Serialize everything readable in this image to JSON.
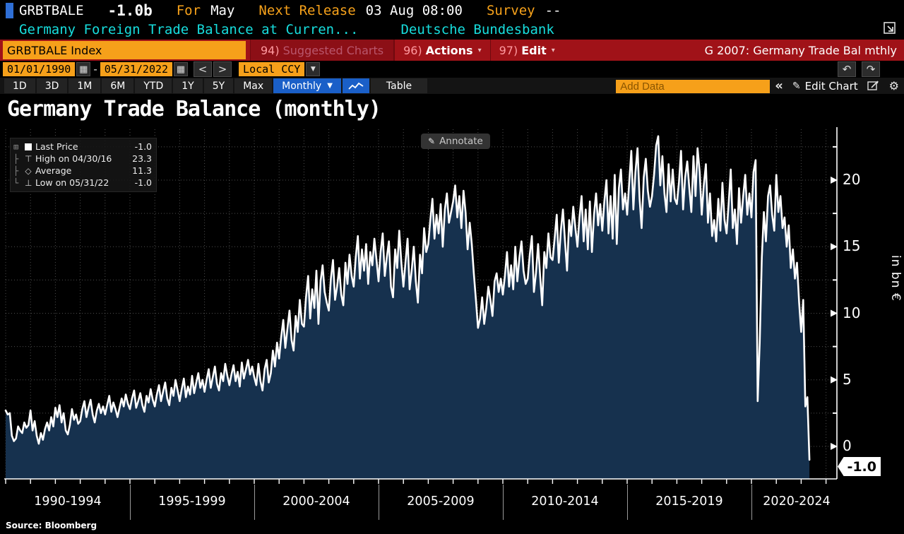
{
  "icons": {
    "calendar": "▦",
    "undo": "↶",
    "redo": "↷",
    "prev": "<",
    "next": ">",
    "caret_small": "▾",
    "caret": "▼",
    "pencil": "✎",
    "gear": "⚙",
    "collapse": "«",
    "legend_expand": "⊞",
    "legend_high": "⊤",
    "legend_avg": "◇",
    "legend_low": "⊥",
    "tree_mid": "├",
    "tree_end": "└"
  },
  "header": {
    "ticker": "GRBTBALE",
    "last_value": "-1.0b",
    "for_label": "For",
    "for_value": "May",
    "next_release_label": "Next Release",
    "next_release_value": "03 Aug 08:00",
    "survey_label": "Survey",
    "survey_value": "--",
    "description": "Germany Foreign Trade Balance at Curren...",
    "source_org": "Deutsche Bundesbank"
  },
  "command_bar": {
    "security_input": "GRBTBALE Index",
    "suggested_num": "94)",
    "suggested_label": "Suggested Charts",
    "actions_num": "96)",
    "actions_label": "Actions",
    "edit_num": "97)",
    "edit_label": "Edit",
    "chart_ref": "G 2007: Germany Trade Bal mthly"
  },
  "range_bar": {
    "start_date": "01/01/1990",
    "separator": "-",
    "end_date": "05/31/2022",
    "currency": "Local CCY"
  },
  "tab_bar": {
    "ranges": [
      "1D",
      "3D",
      "1M",
      "6M",
      "YTD",
      "1Y",
      "5Y",
      "Max"
    ],
    "period": "Monthly",
    "table": "Table",
    "add_data_placeholder": "Add Data",
    "edit_chart": "Edit Chart"
  },
  "chart": {
    "title": "Germany Trade Balance (monthly)",
    "annotate": "Annotate",
    "legend": [
      {
        "label": "Last Price",
        "value": "-1.0"
      },
      {
        "label": "High on 04/30/16",
        "value": "23.3"
      },
      {
        "label": "Average",
        "value": "11.3"
      },
      {
        "label": "Low on 05/31/22",
        "value": "-1.0"
      }
    ],
    "y_axis_unit": "in bn €",
    "last_value_badge": "-1.0",
    "source": "Source: Bloomberg"
  },
  "chart_data": {
    "type": "area",
    "title": "Germany Trade Balance (monthly)",
    "ylabel": "in bn €",
    "frequency": "monthly",
    "x_start": "1990-01",
    "x_end": "2022-05",
    "ylim": [
      -2.4,
      23.9
    ],
    "yticks": [
      0,
      5,
      10,
      15,
      20
    ],
    "ytick_minor_step": 2.5,
    "x_bin_labels": [
      "1990-1994",
      "1995-1999",
      "2000-2004",
      "2005-2009",
      "2010-2014",
      "2015-2019",
      "2020-2024"
    ],
    "high": {
      "date": "04/30/16",
      "value": 23.3
    },
    "low": {
      "date": "05/31/22",
      "value": -1.0
    },
    "average": 11.3,
    "last": -1.0,
    "values": [
      2.7,
      2.4,
      2.5,
      0.8,
      0.4,
      0.6,
      1.5,
      1.2,
      1.0,
      1.8,
      1.4,
      1.6,
      2.7,
      1.2,
      1.9,
      0.8,
      0.2,
      1.0,
      0.5,
      1.3,
      1.8,
      1.2,
      2.2,
      1.5,
      2.9,
      2.2,
      3.1,
      1.8,
      2.5,
      1.2,
      0.9,
      1.6,
      2.8,
      2.0,
      2.4,
      1.7,
      1.9,
      2.8,
      3.4,
      2.2,
      2.9,
      3.5,
      2.4,
      1.8,
      2.7,
      3.2,
      2.5,
      3.0,
      2.4,
      3.1,
      3.8,
      2.6,
      3.3,
      2.8,
      2.2,
      2.9,
      3.6,
      3.0,
      3.9,
      3.2,
      2.8,
      3.6,
      4.2,
      2.9,
      3.4,
      4.0,
      3.1,
      2.6,
      3.8,
      3.3,
      4.3,
      3.5,
      3.0,
      3.9,
      4.6,
      3.4,
      4.1,
      4.8,
      3.6,
      3.1,
      4.4,
      3.8,
      5.0,
      4.2,
      3.4,
      4.3,
      5.1,
      3.7,
      4.5,
      3.9,
      5.3,
      4.0,
      4.8,
      5.5,
      4.4,
      5.0,
      4.1,
      5.0,
      5.8,
      4.4,
      5.2,
      6.0,
      4.7,
      4.2,
      5.5,
      4.9,
      6.2,
      5.3,
      4.6,
      5.4,
      6.1,
      4.9,
      5.6,
      4.5,
      6.3,
      5.1,
      5.8,
      6.5,
      5.4,
      6.0,
      5.2,
      4.6,
      6.2,
      4.9,
      4.2,
      5.8,
      6.5,
      4.8,
      5.5,
      7.2,
      6.0,
      7.8,
      6.6,
      8.2,
      9.5,
      7.4,
      8.8,
      10.2,
      8.0,
      7.2,
      9.8,
      8.6,
      11.0,
      9.2,
      9.0,
      11.2,
      12.8,
      9.6,
      11.8,
      10.4,
      13.2,
      9.2,
      12.4,
      13.6,
      11.6,
      10.8,
      10.2,
      12.6,
      14.0,
      11.0,
      12.0,
      13.4,
      11.4,
      10.6,
      13.8,
      12.2,
      14.4,
      12.8,
      12.0,
      14.2,
      15.8,
      12.6,
      14.8,
      13.2,
      15.2,
      12.2,
      14.6,
      13.6,
      15.6,
      14.0,
      12.4,
      14.6,
      16.0,
      12.8,
      14.2,
      15.4,
      12.0,
      11.2,
      14.8,
      13.4,
      16.2,
      13.8,
      12.0,
      13.8,
      15.6,
      11.8,
      13.2,
      15.0,
      12.4,
      10.8,
      14.4,
      13.0,
      16.4,
      14.6,
      15.2,
      17.0,
      18.6,
      15.6,
      17.4,
      16.0,
      18.2,
      15.0,
      17.8,
      19.0,
      16.8,
      17.6,
      18.4,
      19.6,
      17.2,
      18.8,
      16.4,
      19.2,
      17.6,
      14.8,
      16.8,
      15.2,
      13.0,
      11.0,
      8.9,
      9.6,
      11.2,
      9.2,
      10.4,
      12.0,
      11.0,
      9.8,
      12.4,
      13.0,
      11.6,
      12.6,
      11.4,
      12.8,
      14.6,
      12.0,
      13.6,
      11.8,
      15.0,
      12.4,
      14.2,
      15.4,
      13.2,
      12.2,
      12.6,
      14.4,
      15.8,
      11.6,
      13.0,
      15.2,
      12.8,
      10.6,
      14.6,
      13.4,
      16.0,
      14.2,
      14.0,
      15.6,
      17.4,
      13.8,
      16.2,
      17.8,
      15.4,
      13.2,
      17.0,
      15.8,
      18.0,
      16.4,
      15.0,
      17.2,
      18.8,
      15.4,
      17.8,
      14.8,
      18.4,
      14.6,
      17.4,
      19.0,
      16.6,
      18.2,
      16.2,
      18.4,
      20.0,
      16.0,
      18.8,
      15.6,
      20.4,
      15.2,
      19.4,
      20.8,
      17.8,
      19.0,
      17.4,
      19.8,
      22.2,
      17.8,
      20.6,
      22.4,
      18.6,
      16.4,
      20.2,
      21.6,
      19.2,
      18.0,
      18.8,
      20.4,
      22.6,
      23.3,
      19.6,
      21.8,
      19.0,
      17.6,
      21.2,
      18.4,
      20.8,
      18.6,
      18.2,
      19.8,
      22.2,
      17.8,
      20.2,
      21.4,
      19.4,
      17.6,
      21.8,
      18.8,
      22.4,
      20.6,
      17.4,
      19.6,
      21.2,
      16.8,
      19.0,
      15.8,
      17.0,
      15.4,
      18.6,
      16.2,
      19.8,
      17.0,
      16.0,
      18.2,
      20.8,
      16.4,
      17.8,
      15.2,
      19.4,
      16.8,
      18.8,
      20.4,
      17.4,
      19.0,
      17.2,
      20.6,
      21.5,
      3.4,
      7.8,
      14.2,
      17.6,
      15.4,
      18.8,
      19.6,
      17.4,
      16.2,
      20.4,
      17.6,
      18.8,
      16.4,
      17.2,
      15.0,
      16.6,
      13.4,
      14.8,
      12.6,
      13.8,
      10.8,
      8.6,
      11.0,
      3.0,
      3.7,
      -1.0
    ]
  }
}
